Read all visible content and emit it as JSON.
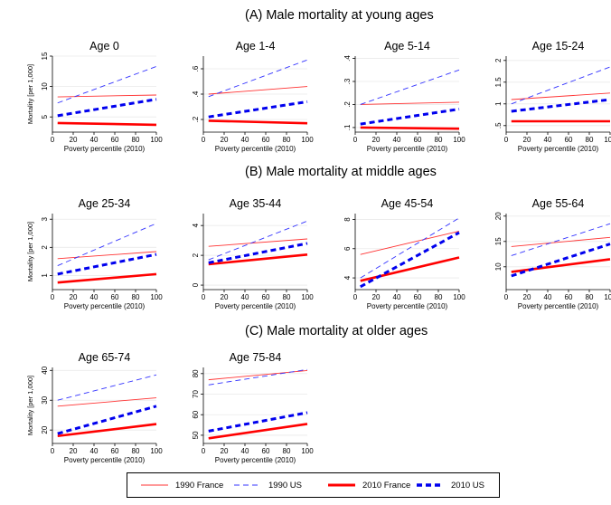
{
  "sections": [
    {
      "title": "(A)  Male mortality at young ages"
    },
    {
      "title": "(B)  Male mortality at middle ages"
    },
    {
      "title": "(C)  Male mortality at older ages"
    }
  ],
  "legend": [
    {
      "label": "1990 France",
      "color": "#ff3333",
      "style": "thin-solid"
    },
    {
      "label": "1990 US",
      "color": "#3333ff",
      "style": "thin-dashed"
    },
    {
      "label": "2010 France",
      "color": "#ff0000",
      "style": "thick-solid"
    },
    {
      "label": "2010 US",
      "color": "#0000ee",
      "style": "thick-dashed"
    }
  ],
  "chart_data": [
    {
      "type": "line",
      "title": "Age 0",
      "xlabel": "Poverty percentile (2010)",
      "ylabel": "Mortality [per 1,000]",
      "xlim": [
        0,
        100
      ],
      "ylim": [
        2.5,
        15
      ],
      "xticks": [
        0,
        20,
        40,
        60,
        80,
        100
      ],
      "yticks": [
        5,
        10,
        15
      ],
      "ytick_labels": [
        "5",
        "10",
        "15"
      ],
      "x": [
        5,
        100
      ],
      "series": [
        {
          "name": "1990 France",
          "values": [
            8.3,
            8.6
          ]
        },
        {
          "name": "1990 US",
          "values": [
            7.3,
            13.3
          ]
        },
        {
          "name": "2010 France",
          "values": [
            4.0,
            3.7
          ]
        },
        {
          "name": "2010 US",
          "values": [
            5.2,
            7.9
          ]
        }
      ]
    },
    {
      "type": "line",
      "title": "Age 1-4",
      "xlabel": "Poverty percentile (2010)",
      "ylabel": "",
      "xlim": [
        0,
        100
      ],
      "ylim": [
        0.1,
        0.7
      ],
      "xticks": [
        0,
        20,
        40,
        60,
        80,
        100
      ],
      "yticks": [
        0.2,
        0.4,
        0.6
      ],
      "ytick_labels": [
        ".2",
        ".4",
        ".6"
      ],
      "x": [
        5,
        100
      ],
      "series": [
        {
          "name": "1990 France",
          "values": [
            0.4,
            0.46
          ]
        },
        {
          "name": "1990 US",
          "values": [
            0.38,
            0.67
          ]
        },
        {
          "name": "2010 France",
          "values": [
            0.19,
            0.17
          ]
        },
        {
          "name": "2010 US",
          "values": [
            0.22,
            0.34
          ]
        }
      ]
    },
    {
      "type": "line",
      "title": "Age 5-14",
      "xlabel": "Poverty percentile (2010)",
      "ylabel": "",
      "xlim": [
        0,
        100
      ],
      "ylim": [
        0.08,
        0.41
      ],
      "xticks": [
        0,
        20,
        40,
        60,
        80,
        100
      ],
      "yticks": [
        0.1,
        0.2,
        0.3,
        0.4
      ],
      "ytick_labels": [
        ".1",
        ".2",
        ".3",
        ".4"
      ],
      "x": [
        5,
        100
      ],
      "series": [
        {
          "name": "1990 France",
          "values": [
            0.2,
            0.21
          ]
        },
        {
          "name": "1990 US",
          "values": [
            0.2,
            0.35
          ]
        },
        {
          "name": "2010 France",
          "values": [
            0.1,
            0.095
          ]
        },
        {
          "name": "2010 US",
          "values": [
            0.115,
            0.18
          ]
        }
      ]
    },
    {
      "type": "line",
      "title": "Age 15-24",
      "xlabel": "Poverty percentile (2010)",
      "ylabel": "",
      "xlim": [
        0,
        100
      ],
      "ylim": [
        0.35,
        2.1
      ],
      "xticks": [
        0,
        20,
        40,
        60,
        80,
        100
      ],
      "yticks": [
        0.5,
        1,
        1.5,
        2
      ],
      "ytick_labels": [
        ".5",
        "1",
        "1.5",
        "2"
      ],
      "x": [
        5,
        100
      ],
      "series": [
        {
          "name": "1990 France",
          "values": [
            1.1,
            1.25
          ]
        },
        {
          "name": "1990 US",
          "values": [
            1.0,
            1.85
          ]
        },
        {
          "name": "2010 France",
          "values": [
            0.6,
            0.6
          ]
        },
        {
          "name": "2010 US",
          "values": [
            0.83,
            1.1
          ]
        }
      ]
    },
    {
      "type": "line",
      "title": "Age 25-34",
      "xlabel": "Poverty percentile (2010)",
      "ylabel": "Mortality [per 1,000]",
      "xlim": [
        0,
        100
      ],
      "ylim": [
        0.5,
        3.2
      ],
      "xticks": [
        0,
        20,
        40,
        60,
        80,
        100
      ],
      "yticks": [
        1,
        2,
        3
      ],
      "ytick_labels": [
        "1",
        "2",
        "3"
      ],
      "x": [
        5,
        100
      ],
      "series": [
        {
          "name": "1990 France",
          "values": [
            1.6,
            1.85
          ]
        },
        {
          "name": "1990 US",
          "values": [
            1.35,
            2.85
          ]
        },
        {
          "name": "2010 France",
          "values": [
            0.75,
            1.05
          ]
        },
        {
          "name": "2010 US",
          "values": [
            1.05,
            1.75
          ]
        }
      ]
    },
    {
      "type": "line",
      "title": "Age 35-44",
      "xlabel": "Poverty percentile (2010)",
      "ylabel": "",
      "xlim": [
        0,
        100
      ],
      "ylim": [
        -0.3,
        4.8
      ],
      "xticks": [
        0,
        20,
        40,
        60,
        80,
        100
      ],
      "yticks": [
        0,
        2,
        4
      ],
      "ytick_labels": [
        "0",
        "2",
        "4"
      ],
      "x": [
        5,
        100
      ],
      "series": [
        {
          "name": "1990 France",
          "values": [
            2.6,
            3.1
          ]
        },
        {
          "name": "1990 US",
          "values": [
            1.7,
            4.3
          ]
        },
        {
          "name": "2010 France",
          "values": [
            1.4,
            2.05
          ]
        },
        {
          "name": "2010 US",
          "values": [
            1.5,
            2.8
          ]
        }
      ]
    },
    {
      "type": "line",
      "title": "Age 45-54",
      "xlabel": "Poverty percentile (2010)",
      "ylabel": "",
      "xlim": [
        0,
        100
      ],
      "ylim": [
        3.2,
        8.4
      ],
      "xticks": [
        0,
        20,
        40,
        60,
        80,
        100
      ],
      "yticks": [
        4,
        6,
        8
      ],
      "ytick_labels": [
        "4",
        "6",
        "8"
      ],
      "x": [
        5,
        100
      ],
      "series": [
        {
          "name": "1990 France",
          "values": [
            5.6,
            7.2
          ]
        },
        {
          "name": "1990 US",
          "values": [
            4.0,
            8.1
          ]
        },
        {
          "name": "2010 France",
          "values": [
            3.8,
            5.4
          ]
        },
        {
          "name": "2010 US",
          "values": [
            3.4,
            7.1
          ]
        }
      ]
    },
    {
      "type": "line",
      "title": "Age 55-64",
      "xlabel": "Poverty percentile (2010)",
      "ylabel": "",
      "xlim": [
        0,
        100
      ],
      "ylim": [
        5.5,
        20.5
      ],
      "xticks": [
        0,
        20,
        40,
        60,
        80,
        100
      ],
      "yticks": [
        10,
        15,
        20
      ],
      "ytick_labels": [
        "10",
        "15",
        "20"
      ],
      "x": [
        5,
        100
      ],
      "series": [
        {
          "name": "1990 France",
          "values": [
            14.0,
            15.8
          ]
        },
        {
          "name": "1990 US",
          "values": [
            12.2,
            18.5
          ]
        },
        {
          "name": "2010 France",
          "values": [
            9.0,
            11.5
          ]
        },
        {
          "name": "2010 US",
          "values": [
            8.2,
            14.5
          ]
        }
      ]
    },
    {
      "type": "line",
      "title": "Age 65-74",
      "xlabel": "Poverty percentile (2010)",
      "ylabel": "Mortality [per 1,000]",
      "xlim": [
        0,
        100
      ],
      "ylim": [
        15.5,
        41
      ],
      "xticks": [
        0,
        20,
        40,
        60,
        80,
        100
      ],
      "yticks": [
        20,
        30,
        40
      ],
      "ytick_labels": [
        "20",
        "30",
        "40"
      ],
      "x": [
        5,
        100
      ],
      "series": [
        {
          "name": "1990 France",
          "values": [
            28.0,
            30.8
          ]
        },
        {
          "name": "1990 US",
          "values": [
            30.0,
            38.5
          ]
        },
        {
          "name": "2010 France",
          "values": [
            18.0,
            22.0
          ]
        },
        {
          "name": "2010 US",
          "values": [
            18.8,
            28.0
          ]
        }
      ]
    },
    {
      "type": "line",
      "title": "Age 75-84",
      "xlabel": "Poverty percentile (2010)",
      "ylabel": "",
      "xlim": [
        0,
        100
      ],
      "ylim": [
        46,
        83
      ],
      "xticks": [
        0,
        20,
        40,
        60,
        80,
        100
      ],
      "yticks": [
        50,
        60,
        70,
        80
      ],
      "ytick_labels": [
        "50",
        "60",
        "70",
        "80"
      ],
      "x": [
        5,
        100
      ],
      "series": [
        {
          "name": "1990 France",
          "values": [
            77.0,
            81.5
          ]
        },
        {
          "name": "1990 US",
          "values": [
            74.5,
            82.0
          ]
        },
        {
          "name": "2010 France",
          "values": [
            48.5,
            55.5
          ]
        },
        {
          "name": "2010 US",
          "values": [
            52.0,
            61.0
          ]
        }
      ]
    }
  ]
}
